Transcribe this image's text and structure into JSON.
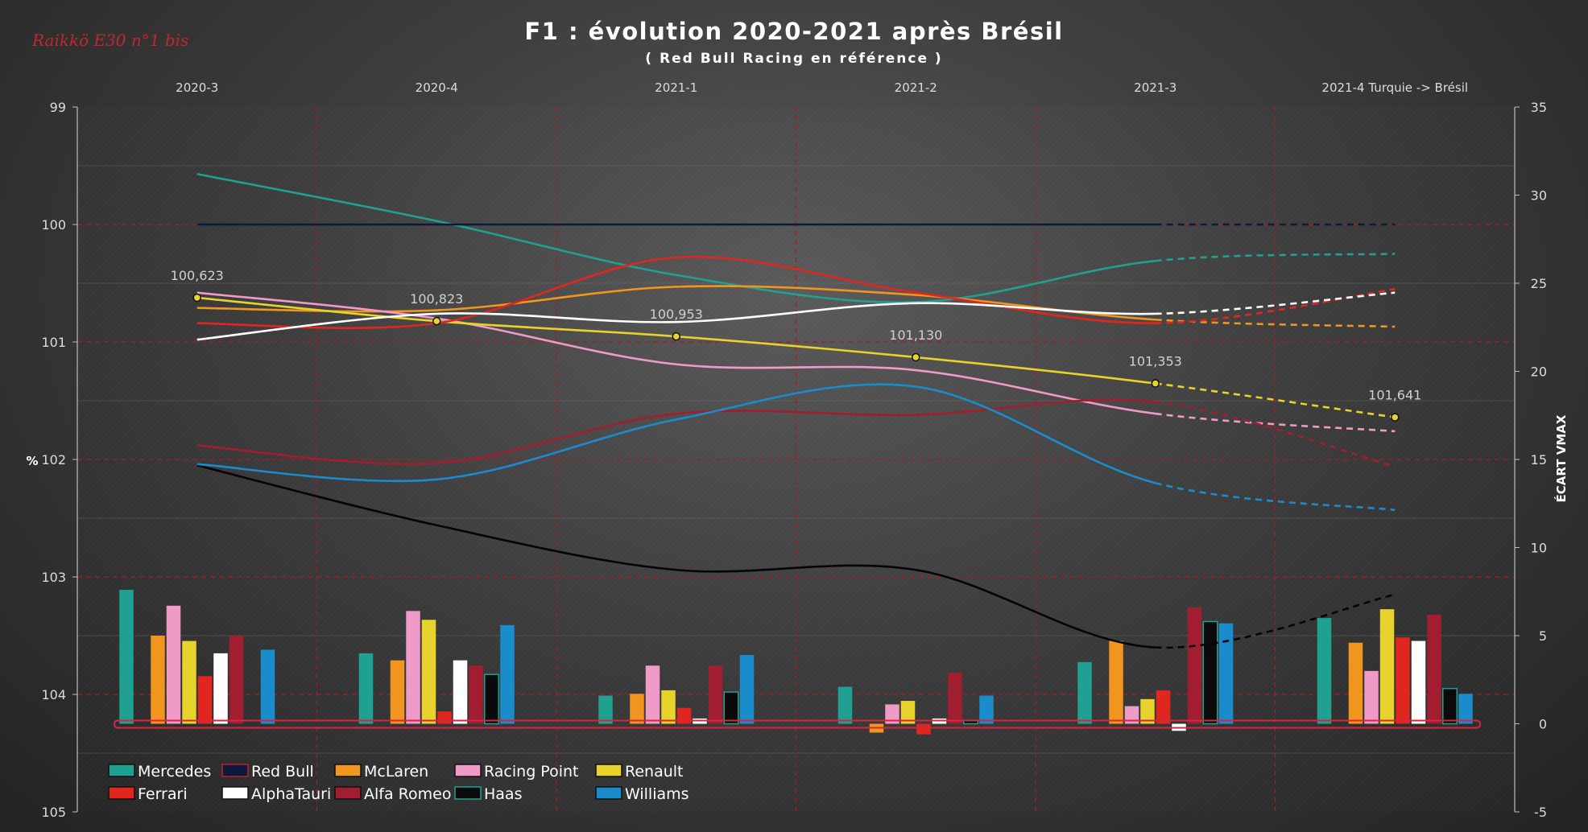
{
  "watermark": "Raikkö E30 n°1 bis",
  "chart_data": {
    "type": "line+bar",
    "title": "F1 : évolution 2020-2021 après Brésil",
    "subtitle": "( Red Bull Racing en référence )",
    "periods": [
      "2020-3",
      "2020-4",
      "2021-1",
      "2021-2",
      "2021-3",
      "2021-4 Turquie -> Brésil"
    ],
    "ylabel_left": "%",
    "ylabel_right": "ÉCART VMAX",
    "y_left": {
      "min": 99,
      "max": 105,
      "inverted": true,
      "ticks": [
        "99",
        "100",
        "101",
        "102",
        "103",
        "104",
        "105"
      ]
    },
    "y_right": {
      "min": -5,
      "max": 35,
      "ticks": [
        "35",
        "30",
        "25",
        "20",
        "15",
        "10",
        "5",
        "0",
        "-5"
      ]
    },
    "series": [
      {
        "name": "Mercedes",
        "color": "#20a090",
        "line": [
          99.57,
          99.97,
          100.43,
          100.66,
          100.31,
          100.25
        ],
        "bars": [
          7.6,
          4.0,
          1.6,
          2.1,
          3.5,
          6.0
        ]
      },
      {
        "name": "Red Bull",
        "color": "#0b1a3a",
        "line": [
          100.0,
          100.0,
          100.0,
          100.0,
          100.0,
          100.0
        ],
        "bars": [
          0,
          0,
          0,
          0,
          0,
          0
        ]
      },
      {
        "name": "McLaren",
        "color": "#f0961e",
        "line": [
          100.71,
          100.73,
          100.53,
          100.6,
          100.81,
          100.87
        ],
        "bars": [
          5.0,
          3.6,
          1.7,
          -0.5,
          4.7,
          4.6
        ]
      },
      {
        "name": "Racing Point",
        "color": "#f09ac8",
        "line": [
          100.58,
          100.8,
          101.19,
          101.24,
          101.61,
          101.76
        ],
        "bars": [
          6.7,
          6.4,
          3.3,
          1.1,
          1.0,
          3.0
        ]
      },
      {
        "name": "Renault",
        "color": "#e8d22c",
        "line": [
          100.623,
          100.823,
          100.953,
          101.13,
          101.353,
          101.641
        ],
        "bars": [
          4.7,
          5.9,
          1.9,
          1.3,
          1.4,
          6.5
        ]
      },
      {
        "name": "Ferrari",
        "color": "#e0261e",
        "line": [
          100.84,
          100.84,
          100.28,
          100.58,
          100.84,
          100.55
        ],
        "bars": [
          2.7,
          0.7,
          0.9,
          -0.6,
          1.9,
          4.9
        ]
      },
      {
        "name": "AlphaTauri",
        "color": "#ffffff",
        "line": [
          100.98,
          100.76,
          100.83,
          100.67,
          100.76,
          100.58
        ],
        "bars": [
          4.0,
          3.6,
          0.3,
          0.3,
          -0.4,
          4.7
        ]
      },
      {
        "name": "Alfa Romeo",
        "color": "#a01e30",
        "line": [
          101.88,
          102.03,
          101.61,
          101.62,
          101.51,
          102.06
        ],
        "bars": [
          5.0,
          3.3,
          3.3,
          2.9,
          6.6,
          6.2
        ]
      },
      {
        "name": "Haas",
        "color": "#0a0a0a",
        "line": [
          102.05,
          102.56,
          102.94,
          102.94,
          103.6,
          103.15
        ],
        "bars": [
          0,
          2.8,
          1.8,
          0.2,
          5.8,
          2.0
        ]
      },
      {
        "name": "Williams",
        "color": "#1a8ccc",
        "line": [
          102.04,
          102.17,
          101.66,
          101.38,
          102.2,
          102.43
        ],
        "bars": [
          4.2,
          5.6,
          3.9,
          1.6,
          5.7,
          1.7
        ]
      }
    ],
    "data_labels": [
      {
        "series": "Renault",
        "period": 0,
        "text": "100,623"
      },
      {
        "series": "Renault",
        "period": 1,
        "text": "100,823"
      },
      {
        "series": "Renault",
        "period": 2,
        "text": "100,953"
      },
      {
        "series": "Renault",
        "period": 3,
        "text": "101,130"
      },
      {
        "series": "Renault",
        "period": 4,
        "text": "101,353"
      },
      {
        "series": "Renault",
        "period": 5,
        "text": "101,641"
      }
    ],
    "dashed_segment": "last",
    "grid": "dashed-red",
    "legend_position": "bottom-left"
  }
}
